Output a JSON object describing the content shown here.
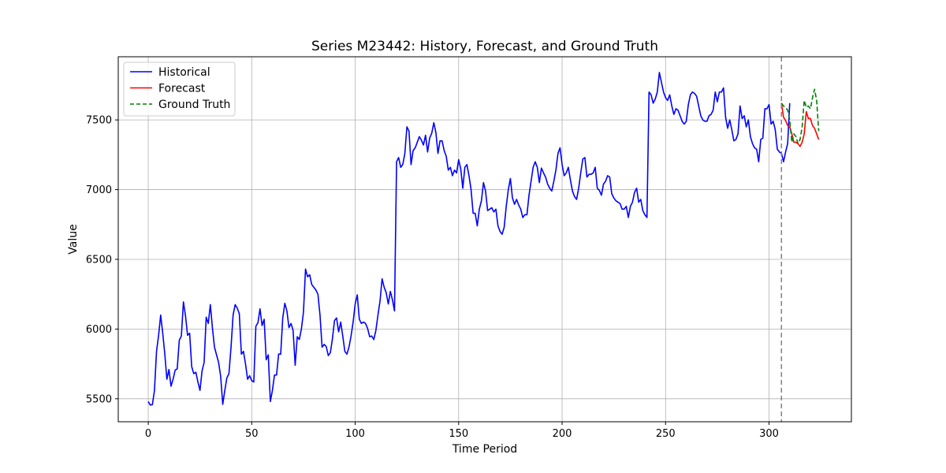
{
  "chart_data": {
    "type": "line",
    "title": "Series M23442: History, Forecast, and Ground Truth",
    "xlabel": "Time Period",
    "ylabel": "Value",
    "xlim": [
      -14.5,
      339.8
    ],
    "ylim": [
      5335,
      7953
    ],
    "xticks": [
      0,
      50,
      100,
      150,
      200,
      250,
      300
    ],
    "yticks": [
      5500,
      6000,
      6500,
      7000,
      7500
    ],
    "grid": true,
    "legend_position": "top-left",
    "forecast_start": 306,
    "series": [
      {
        "name": "Historical",
        "color": "#0000ff",
        "style": "solid",
        "x_start": 0,
        "values": [
          5480,
          5455,
          5458,
          5560,
          5840,
          5955,
          6100,
          5970,
          5820,
          5640,
          5710,
          5590,
          5640,
          5705,
          5715,
          5920,
          5950,
          6195,
          6095,
          5955,
          5970,
          5730,
          5680,
          5690,
          5620,
          5560,
          5700,
          5760,
          6085,
          6040,
          6175,
          6010,
          5870,
          5815,
          5760,
          5660,
          5460,
          5560,
          5650,
          5680,
          5870,
          6100,
          6175,
          6150,
          6110,
          5820,
          5840,
          5750,
          5640,
          5665,
          5630,
          5620,
          6020,
          6045,
          6145,
          6025,
          6070,
          5780,
          5815,
          5480,
          5560,
          5670,
          5670,
          5820,
          5820,
          6080,
          6185,
          6130,
          6010,
          6040,
          5990,
          5740,
          5945,
          5925,
          6000,
          6120,
          6430,
          6375,
          6390,
          6320,
          6300,
          6280,
          6250,
          6100,
          5870,
          5890,
          5875,
          5810,
          5830,
          5930,
          6060,
          6080,
          5980,
          6050,
          5950,
          5840,
          5820,
          5870,
          5950,
          6050,
          6180,
          6245,
          6070,
          6040,
          6050,
          6040,
          6005,
          5945,
          5950,
          5925,
          5990,
          6100,
          6200,
          6360,
          6300,
          6260,
          6180,
          6270,
          6210,
          6130,
          7200,
          7230,
          7160,
          7180,
          7260,
          7450,
          7420,
          7180,
          7280,
          7300,
          7340,
          7380,
          7355,
          7320,
          7390,
          7270,
          7370,
          7405,
          7480,
          7410,
          7260,
          7350,
          7350,
          7280,
          7240,
          7140,
          7160,
          7100,
          7140,
          7120,
          7215,
          7150,
          7010,
          7160,
          7180,
          7100,
          7000,
          6830,
          6830,
          6740,
          6860,
          6920,
          7050,
          6990,
          6850,
          6860,
          6870,
          6840,
          6860,
          6740,
          6700,
          6680,
          6730,
          6880,
          7000,
          7080,
          6940,
          6895,
          6930,
          6890,
          6860,
          6800,
          6820,
          6820,
          6960,
          7060,
          7160,
          7200,
          7160,
          7050,
          7155,
          7120,
          7090,
          7040,
          7010,
          6990,
          7060,
          7140,
          7260,
          7300,
          7180,
          7100,
          7120,
          7160,
          7070,
          6990,
          6950,
          6930,
          7010,
          7120,
          7220,
          7230,
          7090,
          7110,
          7110,
          7120,
          7160,
          7010,
          6995,
          6960,
          7040,
          7060,
          7100,
          7090,
          6970,
          6940,
          6920,
          6910,
          6900,
          6860,
          6860,
          6880,
          6800,
          6880,
          6910,
          6980,
          7010,
          6910,
          6930,
          6850,
          6820,
          6800,
          7700,
          7680,
          7620,
          7650,
          7700,
          7840,
          7770,
          7700,
          7660,
          7640,
          7680,
          7600,
          7540,
          7580,
          7570,
          7530,
          7490,
          7470,
          7490,
          7610,
          7680,
          7700,
          7690,
          7670,
          7600,
          7530,
          7500,
          7490,
          7490,
          7530,
          7540,
          7570,
          7700,
          7630,
          7700,
          7700,
          7730,
          7520,
          7440,
          7500,
          7430,
          7350,
          7360,
          7400,
          7600,
          7510,
          7530,
          7450,
          7500,
          7380,
          7330,
          7300,
          7290,
          7200,
          7360,
          7370,
          7580,
          7580,
          7610,
          7470,
          7490,
          7430,
          7290,
          7270,
          7260,
          7200,
          7270,
          7330,
          7620
        ]
      },
      {
        "name": "Forecast",
        "color": "#ff0000",
        "style": "solid",
        "x_start": 306,
        "values": [
          7620,
          7520,
          7495,
          7460,
          7450,
          7400,
          7340,
          7340,
          7330,
          7310,
          7340,
          7400,
          7560,
          7510,
          7510,
          7460,
          7440,
          7400,
          7360
        ]
      },
      {
        "name": "Ground Truth",
        "color": "#008000",
        "style": "dashed",
        "x_start": 306,
        "values": [
          7620,
          7600,
          7590,
          7570,
          7500,
          7340,
          7400,
          7380,
          7330,
          7360,
          7450,
          7640,
          7590,
          7600,
          7580,
          7660,
          7720,
          7640,
          7420
        ]
      }
    ]
  }
}
